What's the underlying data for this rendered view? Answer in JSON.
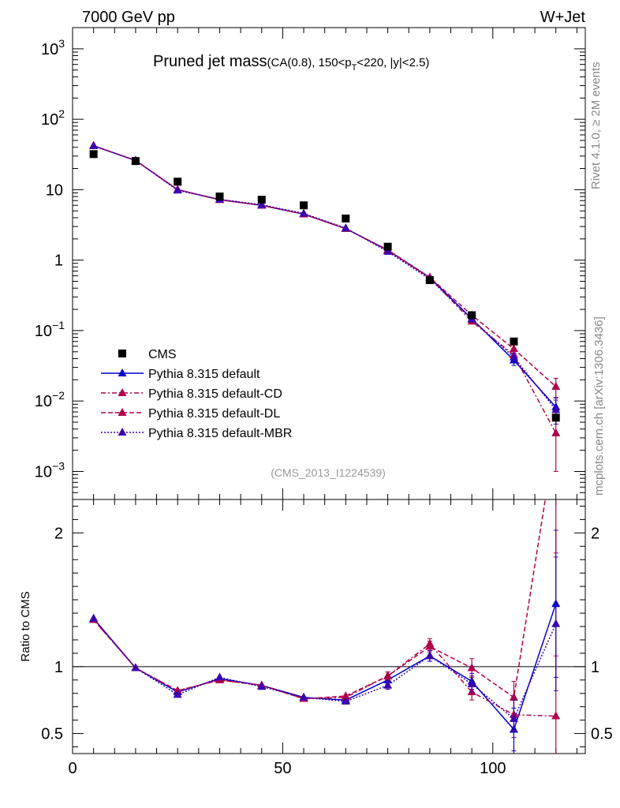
{
  "header": {
    "left": "7000 GeV pp",
    "right": "W+Jet"
  },
  "side_labels": {
    "rivet": "Rivet 4.1.0, ≥ 2M events",
    "mcplots": "mcplots.cern.ch [arXiv:1306.3436]"
  },
  "chart_data": {
    "type": "scatter",
    "title_main": "Pruned jet mass",
    "title_sub": "(CA(0.8), 150<p",
    "title_sub_T": "T",
    "title_sub_tail": "<220, |y|<2.5)",
    "analysis_tag": "(CMS_2013_I1224539)",
    "x": [
      5,
      15,
      25,
      35,
      45,
      55,
      65,
      75,
      85,
      95,
      105,
      115
    ],
    "xlim": [
      0,
      122
    ],
    "x_ticks": [
      0,
      50,
      100
    ],
    "x_tick_labels": [
      "0",
      "50",
      "100"
    ],
    "ylim": [
      0.0004,
      2000
    ],
    "y_ticks": [
      0.001,
      0.01,
      0.1,
      1,
      10,
      100,
      1000
    ],
    "y_tick_labels": [
      {
        "base": "10",
        "exp": "−3"
      },
      {
        "base": "10",
        "exp": "−2"
      },
      {
        "base": "10",
        "exp": "−1"
      },
      {
        "base": "1",
        "exp": ""
      },
      {
        "base": "10",
        "exp": ""
      },
      {
        "base": "10",
        "exp": "2"
      },
      {
        "base": "10",
        "exp": "3"
      }
    ],
    "data": {
      "name": "CMS",
      "color": "#000000",
      "values": [
        32,
        25.5,
        13,
        8,
        7.2,
        6,
        3.9,
        1.55,
        0.52,
        0.165,
        0.07,
        0.0058
      ]
    },
    "series": [
      {
        "name": "Pythia 8.315 default",
        "color": "#0000cc",
        "dash": "",
        "values": [
          42,
          26,
          10,
          7.2,
          6,
          4.5,
          2.8,
          1.38,
          0.565,
          0.147,
          0.038,
          0.0082
        ],
        "errors": [
          0,
          0,
          0,
          0,
          0,
          0,
          0,
          0.05,
          0.02,
          0.01,
          0.006,
          0.003
        ]
      },
      {
        "name": "Pythia 8.315 default-CD",
        "color": "#b0004a",
        "dash": "6,3,2,3",
        "values": [
          42,
          26,
          10,
          7.2,
          6,
          4.5,
          2.8,
          1.38,
          0.56,
          0.135,
          0.045,
          0.0035
        ],
        "errors": [
          0,
          0,
          0,
          0,
          0,
          0,
          0,
          0.05,
          0.02,
          0.01,
          0.006,
          0.0025
        ]
      },
      {
        "name": "Pythia 8.315 default-DL",
        "color": "#b0004a",
        "dash": "6,3",
        "values": [
          42,
          26,
          10,
          7.2,
          6,
          4.5,
          2.8,
          1.4,
          0.57,
          0.165,
          0.055,
          0.016
        ],
        "errors": [
          0,
          0,
          0,
          0,
          0,
          0,
          0,
          0.05,
          0.02,
          0.01,
          0.008,
          0.005
        ]
      },
      {
        "name": "Pythia 8.315 default-MBR",
        "color": "#3a00b0",
        "dash": "2,2",
        "values": [
          42,
          26,
          9.8,
          7.3,
          6.1,
          4.6,
          2.85,
          1.32,
          0.54,
          0.145,
          0.042,
          0.0075
        ],
        "errors": [
          0,
          0,
          0,
          0,
          0,
          0,
          0,
          0.05,
          0.02,
          0.01,
          0.006,
          0.0028
        ]
      }
    ],
    "ratio": {
      "ylabel": "Ratio to CMS",
      "ylim": [
        0.35,
        2.25
      ],
      "y_ticks": [
        0.5,
        1,
        2
      ],
      "y_tick_labels": [
        "0.5",
        "1",
        "2"
      ],
      "series": [
        {
          "values": [
            1.36,
            0.99,
            0.81,
            0.91,
            0.86,
            0.77,
            0.75,
            0.9,
            1.08,
            0.89,
            0.53,
            1.47
          ],
          "errors": [
            0,
            0,
            0,
            0,
            0,
            0,
            0,
            0.03,
            0.04,
            0.06,
            0.16,
            0.55
          ]
        },
        {
          "values": [
            1.35,
            0.99,
            0.82,
            0.9,
            0.86,
            0.76,
            0.77,
            0.93,
            1.17,
            0.81,
            0.64,
            0.63
          ],
          "errors": [
            0,
            0,
            0,
            0,
            0,
            0,
            0,
            0.03,
            0.04,
            0.06,
            0.12,
            0.45
          ]
        },
        {
          "values": [
            1.35,
            0.99,
            0.82,
            0.9,
            0.86,
            0.76,
            0.78,
            0.93,
            1.15,
            0.99,
            0.77,
            2.75
          ],
          "errors": [
            0,
            0,
            0,
            0,
            0,
            0,
            0,
            0.03,
            0.04,
            0.07,
            0.12,
            0.9
          ]
        },
        {
          "values": [
            1.36,
            0.99,
            0.79,
            0.92,
            0.85,
            0.77,
            0.74,
            0.86,
            1.08,
            0.87,
            0.61,
            1.32
          ],
          "errors": [
            0,
            0,
            0,
            0,
            0,
            0,
            0,
            0.03,
            0.04,
            0.06,
            0.14,
            0.5
          ]
        }
      ]
    }
  }
}
